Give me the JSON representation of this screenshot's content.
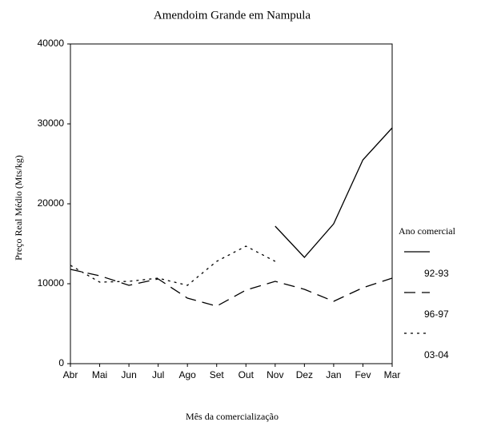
{
  "chart_data": {
    "type": "line",
    "title": "Amendoim Grande em Nampula",
    "x_label": "Mês da comercialização",
    "y_label": "Preço Real Médio (Mts/kg)",
    "categories": [
      "Abr",
      "Mai",
      "Jun",
      "Jul",
      "Ago",
      "Set",
      "Out",
      "Nov",
      "Dez",
      "Jan",
      "Fev",
      "Mar"
    ],
    "ylim": [
      0,
      40000
    ],
    "yticks": [
      0,
      10000,
      20000,
      30000,
      40000
    ],
    "legend_title": "Ano comercial",
    "legend_position": "right",
    "series": [
      {
        "name": "92-93",
        "color": "#000000",
        "dash": "none",
        "values": [
          null,
          null,
          null,
          null,
          null,
          null,
          null,
          17200,
          13300,
          17500,
          25500,
          29500
        ]
      },
      {
        "name": "96-97",
        "color": "#000000",
        "dash": "14,8",
        "values": [
          11800,
          11000,
          9800,
          10600,
          8200,
          7200,
          9200,
          10300,
          9300,
          7800,
          9500,
          10700
        ]
      },
      {
        "name": "03-04",
        "color": "#000000",
        "dash": "3,5",
        "values": [
          12300,
          10200,
          10300,
          10700,
          9800,
          12800,
          14700,
          12800,
          null,
          null,
          null,
          null
        ]
      }
    ]
  }
}
